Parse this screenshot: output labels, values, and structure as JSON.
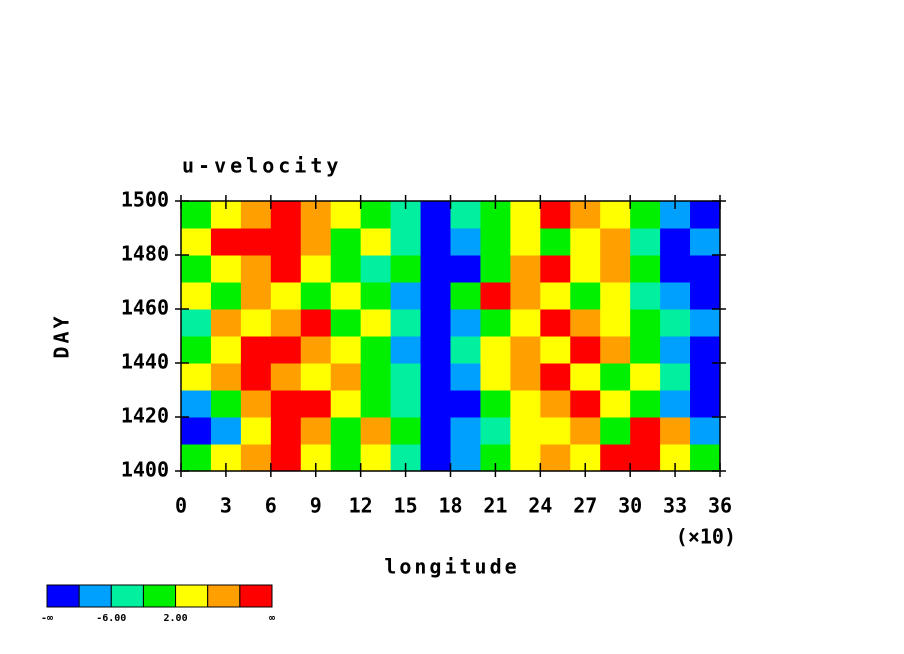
{
  "chart_data": {
    "type": "contourf",
    "title": "u-velocity",
    "xlabel": "longitude",
    "ylabel": "DAY",
    "x_multiplier": "(×10)",
    "xlim": [
      0,
      36
    ],
    "xticks": [
      0,
      3,
      6,
      9,
      12,
      15,
      18,
      21,
      24,
      27,
      30,
      33,
      36
    ],
    "ylim": [
      1400,
      1500
    ],
    "yticks": [
      1400,
      1420,
      1440,
      1460,
      1480,
      1500
    ],
    "colors": [
      "#0000ff",
      "#00a0ff",
      "#00f0a0",
      "#00f000",
      "#ffff00",
      "#ffa000",
      "#ff0000"
    ],
    "colorbar_labels": [
      "-∞",
      null,
      "-6.00",
      null,
      "2.00",
      null,
      null,
      "∞"
    ],
    "z": [
      [
        3,
        4,
        5,
        6,
        4,
        3,
        4,
        2,
        0,
        1,
        3,
        4,
        5,
        4,
        6,
        6,
        4,
        3
      ],
      [
        0,
        1,
        4,
        6,
        5,
        3,
        5,
        3,
        0,
        1,
        2,
        4,
        4,
        5,
        3,
        6,
        5,
        1
      ],
      [
        1,
        3,
        5,
        6,
        6,
        4,
        3,
        2,
        0,
        0,
        3,
        4,
        5,
        6,
        4,
        3,
        1,
        0
      ],
      [
        4,
        5,
        6,
        5,
        4,
        5,
        3,
        2,
        0,
        1,
        4,
        5,
        6,
        4,
        3,
        4,
        2,
        0
      ],
      [
        3,
        4,
        6,
        6,
        5,
        4,
        3,
        1,
        0,
        2,
        4,
        5,
        4,
        6,
        5,
        3,
        1,
        0
      ],
      [
        2,
        5,
        4,
        5,
        6,
        3,
        4,
        2,
        0,
        1,
        3,
        4,
        6,
        5,
        4,
        3,
        2,
        1
      ],
      [
        4,
        3,
        5,
        4,
        3,
        4,
        3,
        1,
        0,
        3,
        6,
        5,
        4,
        3,
        4,
        2,
        1,
        0
      ],
      [
        3,
        4,
        5,
        6,
        4,
        3,
        2,
        3,
        0,
        0,
        3,
        5,
        6,
        4,
        5,
        3,
        0,
        0
      ],
      [
        4,
        6,
        6,
        6,
        5,
        3,
        4,
        2,
        0,
        1,
        3,
        4,
        3,
        4,
        5,
        2,
        0,
        1
      ],
      [
        3,
        4,
        5,
        6,
        5,
        4,
        3,
        2,
        0,
        2,
        3,
        4,
        6,
        5,
        4,
        3,
        1,
        0
      ]
    ]
  }
}
